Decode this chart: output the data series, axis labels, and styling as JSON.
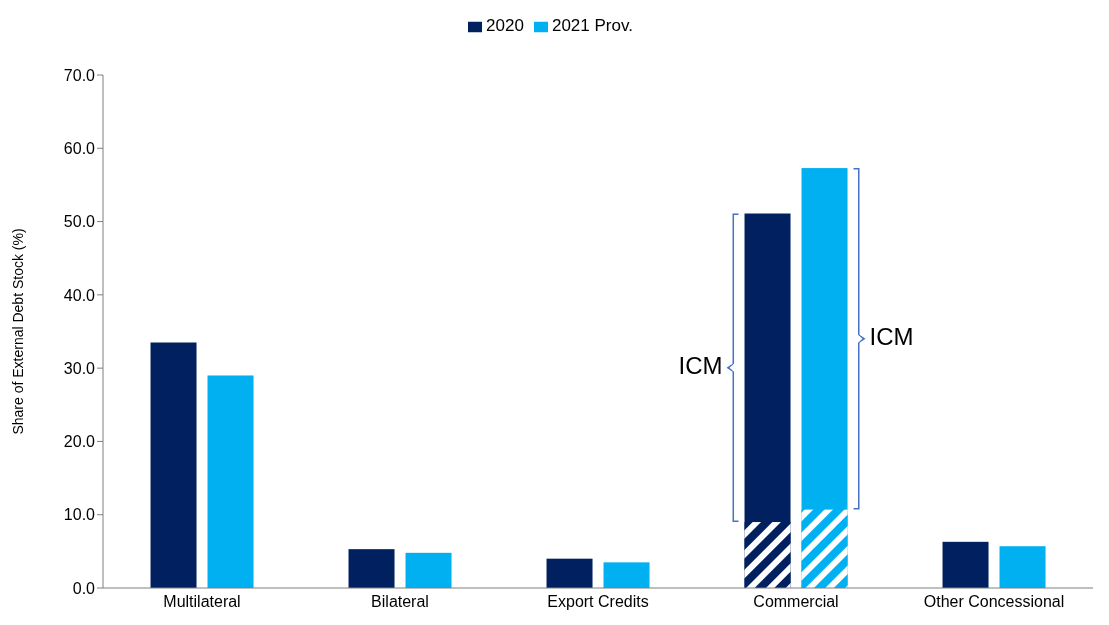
{
  "chart_data": {
    "type": "bar",
    "ylabel": "Share of External Debt Stock (%)",
    "categories": [
      "Multilateral",
      "Bilateral",
      "Export Credits",
      "Commercial",
      "Other Concessional"
    ],
    "series": [
      {
        "name": "2020",
        "color": "#002060",
        "values": [
          33.5,
          5.3,
          4.0,
          51.1,
          6.3
        ]
      },
      {
        "name": "2021 Prov.",
        "color": "#00b0f0",
        "values": [
          29.0,
          4.8,
          3.5,
          57.3,
          5.7
        ]
      },
      {
        "color": "#002060",
        "values": [
          null,
          null,
          null,
          9.0,
          null
        ]
      },
      {
        "color": "#00b0f0",
        "values": [
          null,
          null,
          null,
          10.7,
          null
        ]
      }
    ],
    "ylim": [
      0,
      70
    ],
    "yticks": [
      {
        "value": 0,
        "label": "0.0"
      },
      {
        "value": 10,
        "label": "10.0"
      },
      {
        "value": 20,
        "label": "20.0"
      },
      {
        "value": 30,
        "label": "30.0"
      },
      {
        "value": 40,
        "label": "40.0"
      },
      {
        "value": 50,
        "label": "50.0"
      },
      {
        "value": 60,
        "label": "60.0"
      },
      {
        "value": 70,
        "label": "70.0"
      }
    ],
    "annotations": [
      "ICM",
      "ICM"
    ],
    "grid": false,
    "legend": "top"
  }
}
